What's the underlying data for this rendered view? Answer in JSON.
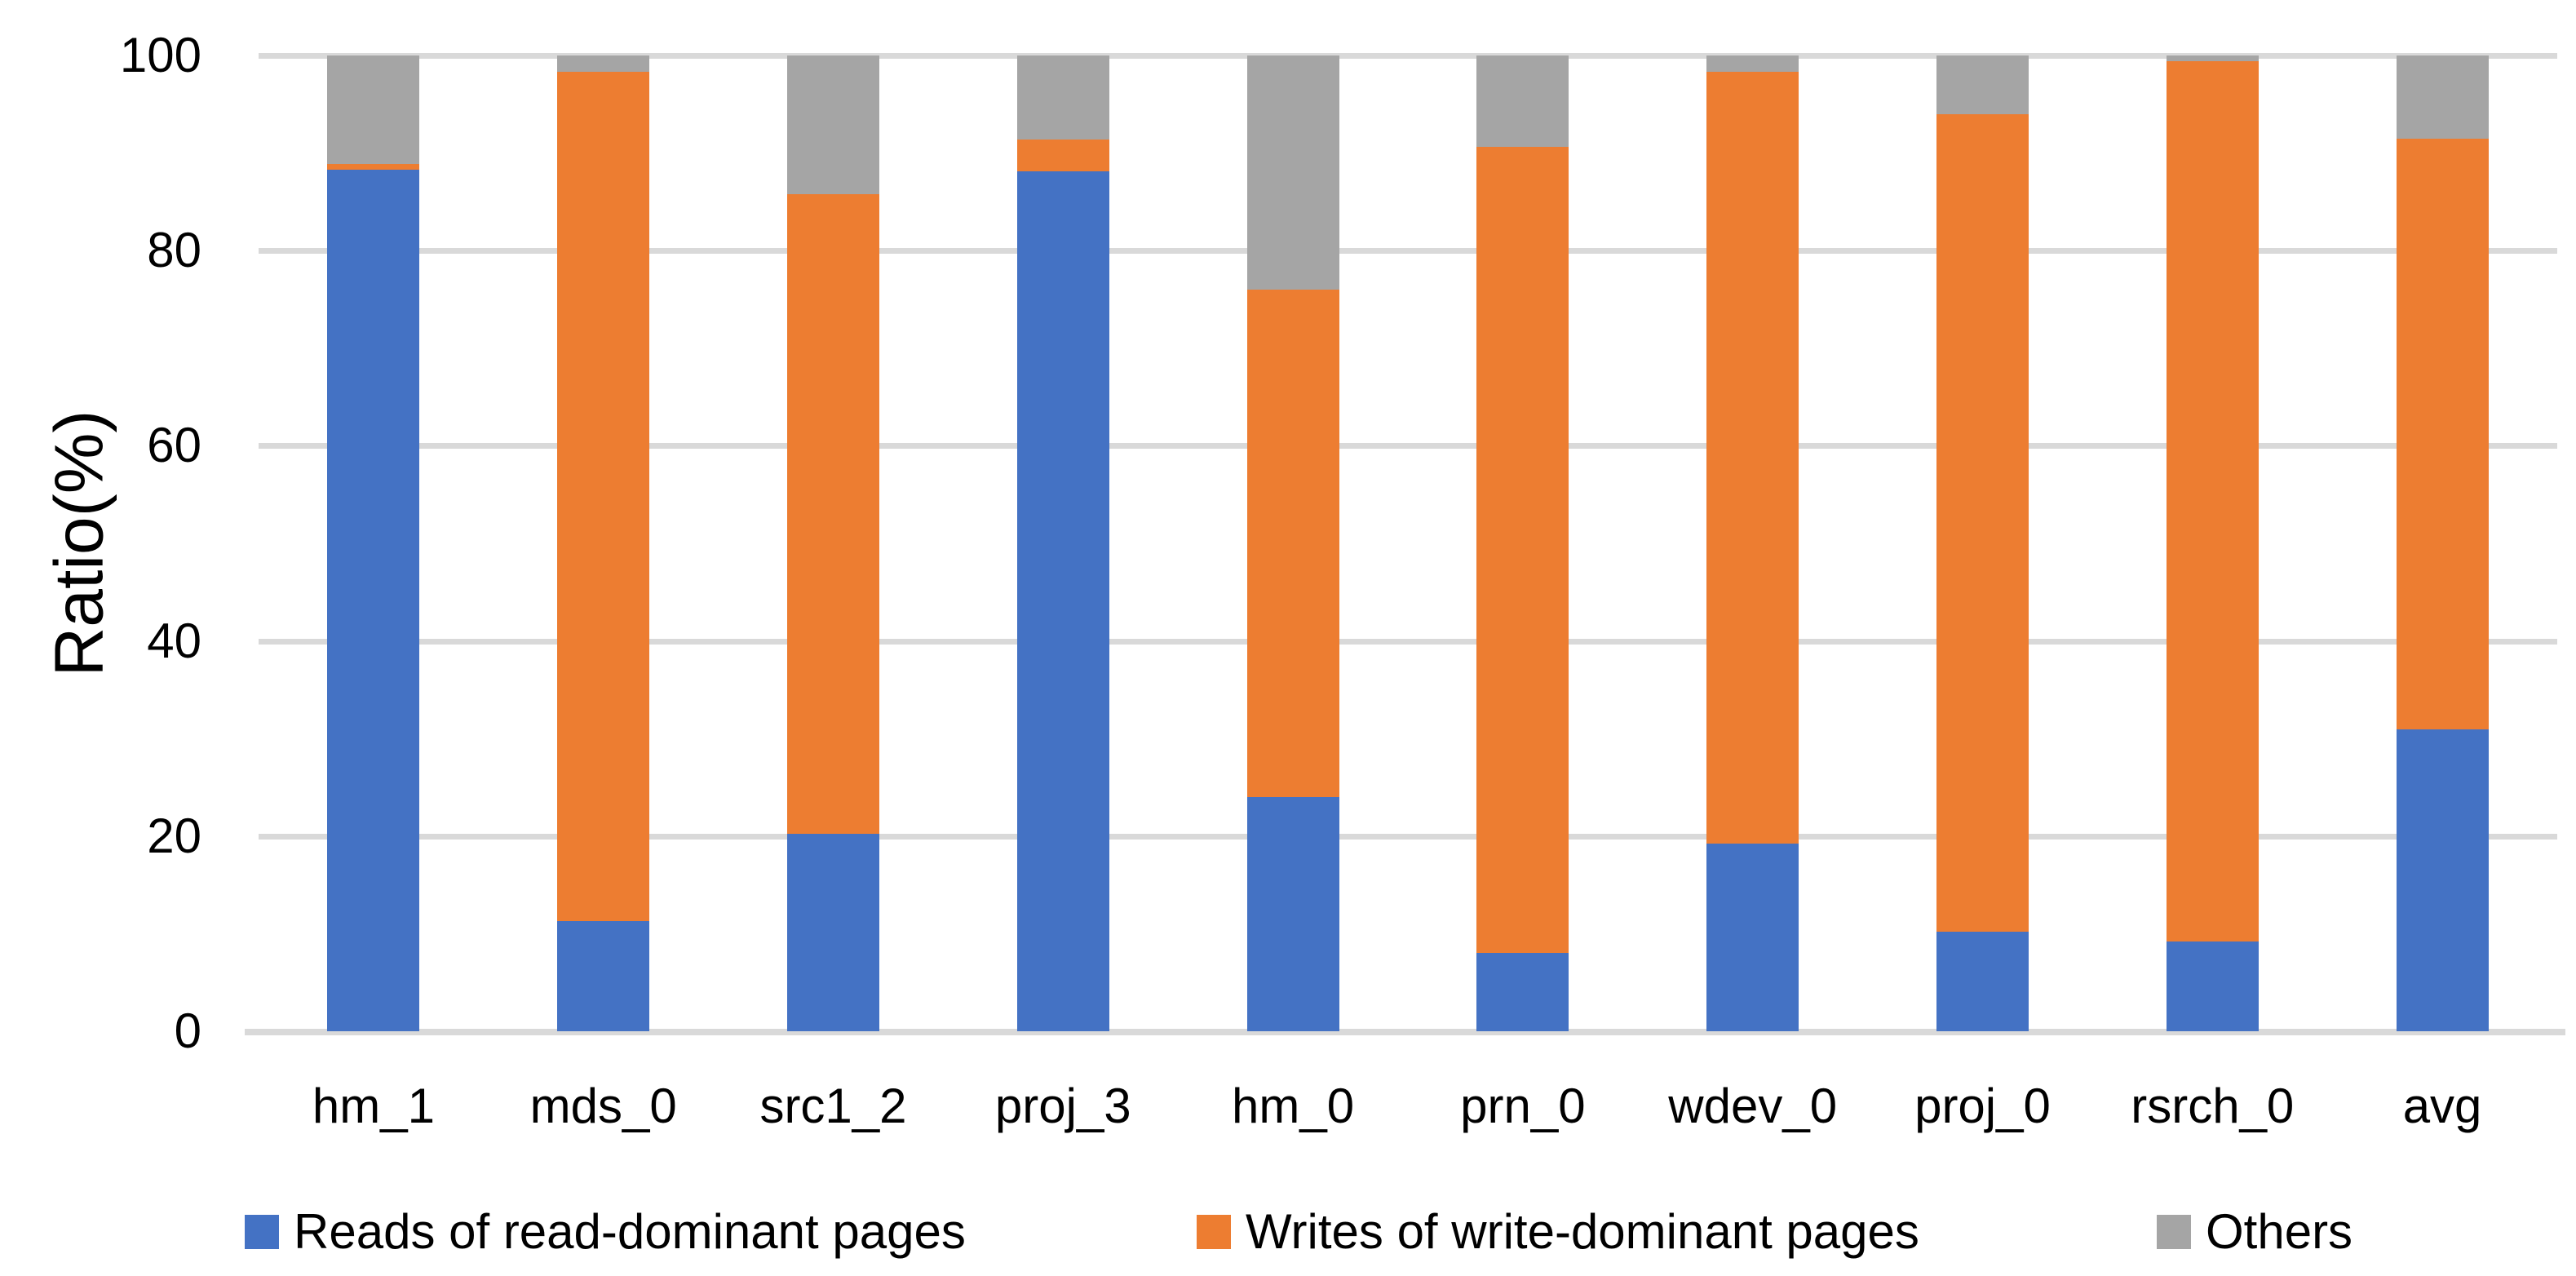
{
  "chart_data": {
    "type": "bar",
    "stacked": true,
    "title": "",
    "xlabel": "",
    "ylabel": "Ratio(%)",
    "ylim": [
      0,
      100
    ],
    "yticks": [
      0,
      20,
      40,
      60,
      80,
      100
    ],
    "grid": true,
    "legend_position": "bottom",
    "background_color": "#FFFFFF",
    "gridline_color": "#D9D9D9",
    "axis_text_color": "#000000",
    "categories": [
      "hm_1",
      "mds_0",
      "src1_2",
      "proj_3",
      "hm_0",
      "prn_0",
      "wdev_0",
      "proj_0",
      "rsrch_0",
      "avg"
    ],
    "series": [
      {
        "name": "Reads of read-dominant pages",
        "color": "#4472C4",
        "values": [
          88.3,
          11.3,
          20.2,
          88.1,
          24.0,
          8.0,
          19.2,
          10.2,
          9.2,
          30.9
        ]
      },
      {
        "name": "Writes of write-dominant pages",
        "color": "#ED7D31",
        "values": [
          0.6,
          87.0,
          65.6,
          3.3,
          52.0,
          82.6,
          79.1,
          83.8,
          90.2,
          60.6
        ]
      },
      {
        "name": "Others",
        "color": "#A5A5A5",
        "values": [
          11.1,
          1.7,
          14.2,
          8.6,
          24.0,
          9.4,
          1.7,
          6.0,
          0.6,
          8.5
        ]
      }
    ]
  }
}
